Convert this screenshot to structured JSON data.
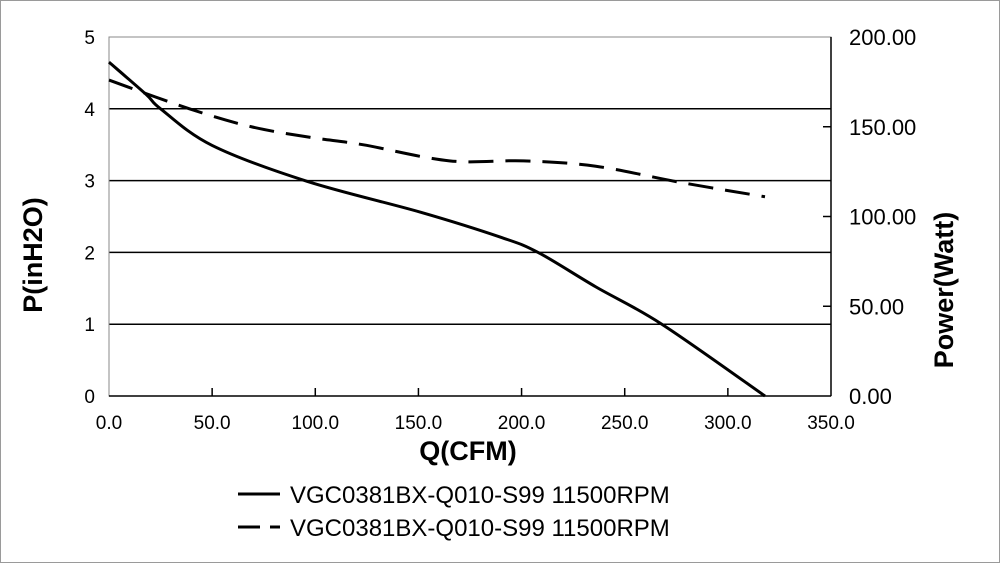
{
  "chart_data": {
    "type": "line",
    "title": "",
    "xlabel": "Q(CFM)",
    "ylabel": "P(inH2O)",
    "y2label": "Power(Watt)",
    "xlim": [
      0,
      350
    ],
    "ylim": [
      0,
      5
    ],
    "y2lim": [
      0,
      200
    ],
    "x_ticks": [
      "0.0",
      "50.0",
      "100.0",
      "150.0",
      "200.0",
      "250.0",
      "300.0",
      "350.0"
    ],
    "x_tick_values": [
      0,
      50,
      100,
      150,
      200,
      250,
      300,
      350
    ],
    "y_ticks": [
      "0",
      "1",
      "2",
      "3",
      "4",
      "5"
    ],
    "y_tick_values": [
      0,
      1,
      2,
      3,
      4,
      5
    ],
    "y2_ticks": [
      "0.00",
      "50.00",
      "100.00",
      "150.00",
      "200.00"
    ],
    "y2_tick_values": [
      0,
      50,
      100,
      150,
      200
    ],
    "grid": "horizontal",
    "legend_placement": "bottom",
    "series": [
      {
        "name": "VGC0381BX-Q010-S99 11500RPM",
        "axis": "left",
        "style": "solid",
        "color": "#000000",
        "x": [
          0,
          18,
          25,
          50,
          96,
          151,
          190,
          208,
          236,
          268,
          318
        ],
        "y": [
          4.65,
          4.2,
          4.0,
          3.49,
          2.99,
          2.56,
          2.21,
          2.0,
          1.52,
          1.0,
          0
        ]
      },
      {
        "name": "VGC0381BX-Q010-S99 11500RPM",
        "axis": "right",
        "style": "dashed",
        "color": "#000000",
        "x": [
          0,
          39,
          69,
          98,
          123,
          165,
          201,
          236,
          277,
          318
        ],
        "y": [
          176,
          160,
          150,
          144,
          140,
          131,
          131,
          128,
          119,
          111
        ]
      }
    ]
  }
}
